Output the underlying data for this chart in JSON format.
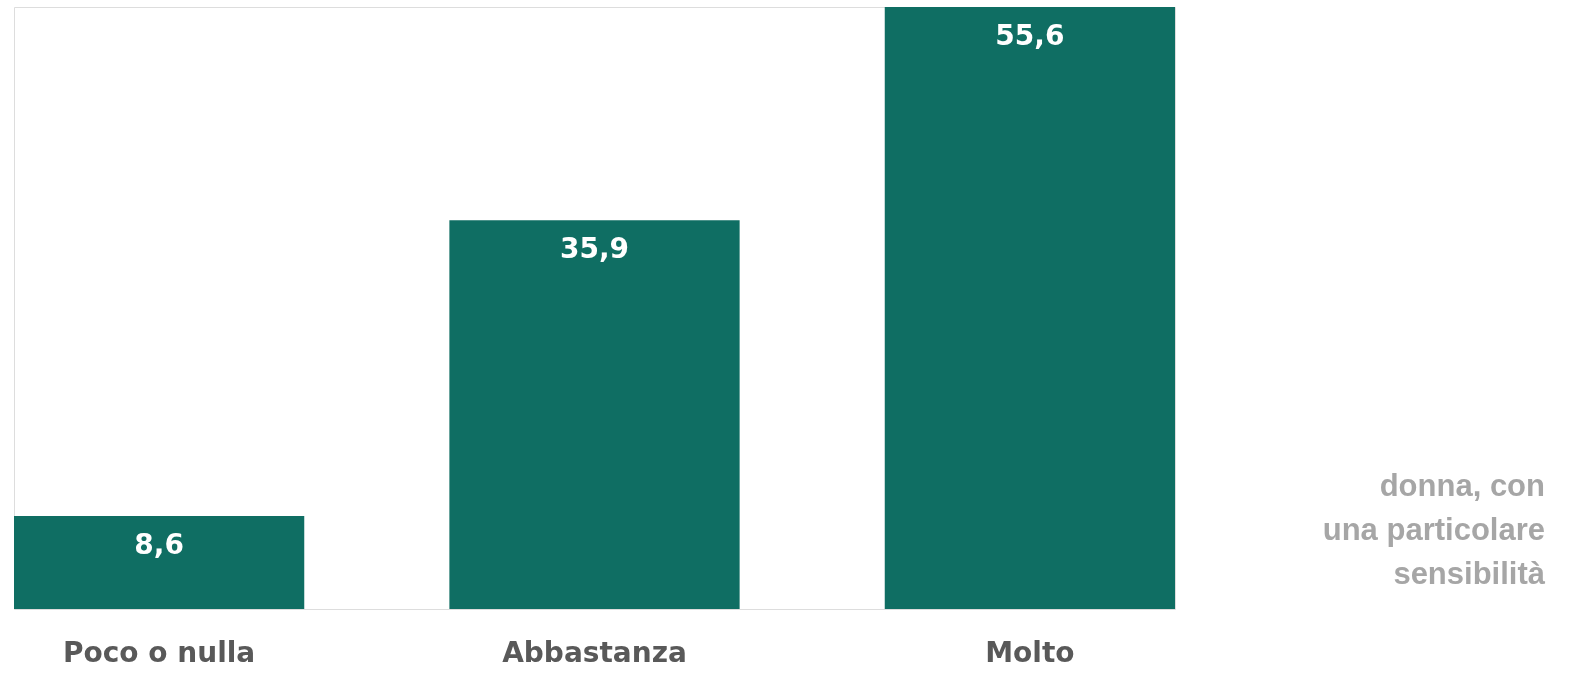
{
  "chart_data": {
    "type": "bar",
    "categories": [
      "Poco o nulla",
      "Abbastanza",
      "Molto"
    ],
    "values": [
      8.6,
      35.9,
      55.6
    ],
    "value_labels": [
      "8,6",
      "35,9",
      "55,6"
    ],
    "color": "#0f6e63",
    "annotations": [
      "donna, con\nuna particolare\nsensibilità"
    ]
  }
}
